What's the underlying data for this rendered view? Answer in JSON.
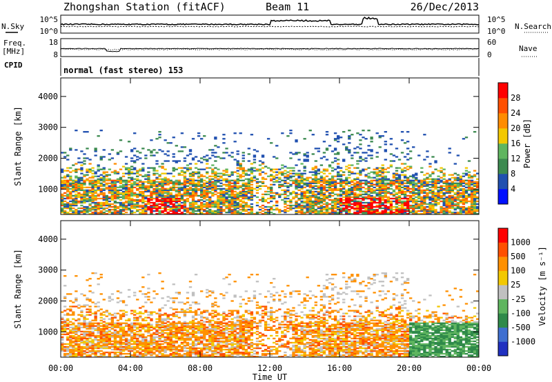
{
  "header": {
    "title": "Zhongshan Station (fitACF)",
    "beam": "Beam 11",
    "date": "26/Dec/2013"
  },
  "noise_panel": {
    "left_label": "N.Sky",
    "left_ticks": [
      "10^5",
      "10^0"
    ],
    "right_label": "N.Search",
    "right_ticks": [
      "10^5",
      "10^0"
    ]
  },
  "freq_panel": {
    "left_label_1": "Freq.",
    "left_label_2": "[MHz]",
    "left_ticks": [
      "18",
      "8"
    ],
    "right_label": "Nave",
    "right_ticks": [
      "60",
      "0"
    ]
  },
  "cpid_panel": {
    "label": "CPID",
    "text": "normal (fast stereo) 153"
  },
  "x_axis": {
    "ticks": [
      "00:00",
      "04:00",
      "08:00",
      "12:00",
      "16:00",
      "20:00",
      "00:00"
    ],
    "label": "Time UT"
  },
  "chart_data": [
    {
      "type": "heatmap",
      "name": "power",
      "ylabel": "Slant Range [km]",
      "yticks": [
        "1000",
        "2000",
        "3000",
        "4000"
      ],
      "ylim": [
        180,
        4600
      ],
      "xlim": [
        0,
        24
      ],
      "colorbar": {
        "label": "Power [dB]",
        "ticks": [
          "4",
          "8",
          "12",
          "16",
          "20",
          "24",
          "28"
        ],
        "range": [
          0,
          32
        ],
        "colors": [
          "#0010ff",
          "#2050b0",
          "#3c8a50",
          "#5fb55f",
          "#f2c800",
          "#ff8c00",
          "#ff5000",
          "#ff0000"
        ]
      }
    },
    {
      "type": "heatmap",
      "name": "velocity",
      "ylabel": "Slant Range [km]",
      "yticks": [
        "1000",
        "2000",
        "3000",
        "4000"
      ],
      "ylim": [
        180,
        4600
      ],
      "xlim": [
        0,
        24
      ],
      "colorbar": {
        "label": "Velocity [m s⁻¹]",
        "ticks": [
          "1000",
          "500",
          "100",
          "25",
          "-25",
          "-100",
          "-500",
          "-1000"
        ],
        "colors": [
          "#2030c0",
          "#3f6fd0",
          "#2f8a4a",
          "#5fb55f",
          "#c0c0c0",
          "#f2c800",
          "#ff9000",
          "#ff5000",
          "#ff0000"
        ]
      }
    }
  ]
}
